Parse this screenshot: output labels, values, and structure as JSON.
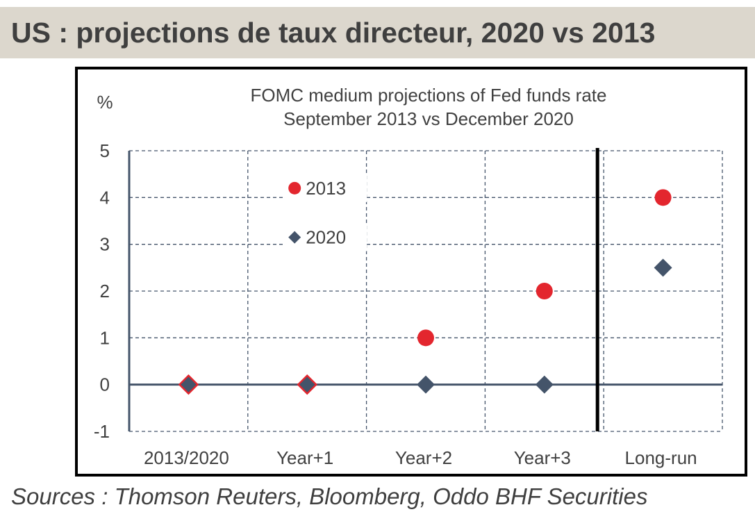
{
  "header": {
    "title": "US : projections de taux directeur, 2020 vs 2013"
  },
  "chart_data": {
    "type": "scatter",
    "title": "FOMC medium projections of Fed funds rate",
    "subtitle": "September 2013 vs December 2020",
    "ylabel": "%",
    "xlabel": "",
    "categories": [
      "2013/2020",
      "Year+1",
      "Year+2",
      "Year+3",
      "Long-run"
    ],
    "ylim": [
      -1,
      5
    ],
    "yticks": [
      "-1",
      "0",
      "1",
      "2",
      "3",
      "4",
      "5"
    ],
    "grid": true,
    "legend_position": "top-left",
    "separator_before_category": "Long-run",
    "series": [
      {
        "name": "2013",
        "marker": "circle",
        "color": "#e3262e",
        "values": [
          0,
          0,
          1,
          2,
          4
        ]
      },
      {
        "name": "2020",
        "marker": "diamond",
        "color": "#44546a",
        "values": [
          0,
          0,
          0,
          0,
          2.5
        ]
      }
    ]
  },
  "footer": {
    "sources": "Sources : Thomson Reuters, Bloomberg, Oddo BHF Securities"
  }
}
